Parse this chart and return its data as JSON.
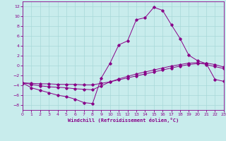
{
  "xlabel": "Windchill (Refroidissement éolien,°C)",
  "background_color": "#c8ecec",
  "line_color": "#880088",
  "grid_color": "#a8d8d8",
  "xlim": [
    0,
    23
  ],
  "ylim": [
    -9,
    13
  ],
  "xticks": [
    0,
    1,
    2,
    3,
    4,
    5,
    6,
    7,
    8,
    9,
    10,
    11,
    12,
    13,
    14,
    15,
    16,
    17,
    18,
    19,
    20,
    21,
    22,
    23
  ],
  "yticks": [
    -8,
    -6,
    -4,
    -2,
    0,
    2,
    4,
    6,
    8,
    10,
    12
  ],
  "curve1_x": [
    0,
    1,
    2,
    3,
    4,
    5,
    6,
    7,
    8,
    9,
    10,
    11,
    12,
    13,
    14,
    15,
    16,
    17,
    18,
    19,
    20,
    21,
    22,
    23
  ],
  "curve1_y": [
    -3.5,
    -4.5,
    -5.0,
    -5.5,
    -6.0,
    -6.3,
    -6.8,
    -7.5,
    -7.7,
    -2.5,
    0.5,
    4.2,
    5.0,
    9.3,
    9.7,
    11.8,
    11.2,
    8.3,
    5.5,
    2.1,
    1.0,
    0.4,
    -2.8,
    -3.2
  ],
  "curve2_x": [
    0,
    1,
    2,
    3,
    4,
    5,
    6,
    7,
    8,
    9,
    10,
    11,
    12,
    13,
    14,
    15,
    16,
    17,
    18,
    19,
    20,
    21,
    22,
    23
  ],
  "curve2_y": [
    -3.5,
    -3.8,
    -4.1,
    -4.3,
    -4.4,
    -4.5,
    -4.7,
    -4.8,
    -4.9,
    -4.1,
    -3.3,
    -2.7,
    -2.2,
    -1.7,
    -1.3,
    -0.9,
    -0.5,
    -0.1,
    0.2,
    0.5,
    0.6,
    0.2,
    -0.2,
    -0.6
  ],
  "curve3_x": [
    0,
    1,
    2,
    3,
    4,
    5,
    6,
    7,
    8,
    9,
    10,
    11,
    12,
    13,
    14,
    15,
    16,
    17,
    18,
    19,
    20,
    21,
    22,
    23
  ],
  "curve3_y": [
    -3.5,
    -3.6,
    -3.7,
    -3.7,
    -3.8,
    -3.8,
    -3.8,
    -3.9,
    -3.9,
    -3.6,
    -3.3,
    -2.9,
    -2.5,
    -2.1,
    -1.7,
    -1.3,
    -0.9,
    -0.5,
    -0.1,
    0.2,
    0.4,
    0.5,
    0.2,
    -0.3
  ],
  "xlabel_fontsize": 5.0,
  "tick_fontsize": 4.5,
  "marker_size": 1.8,
  "linewidth": 0.7
}
